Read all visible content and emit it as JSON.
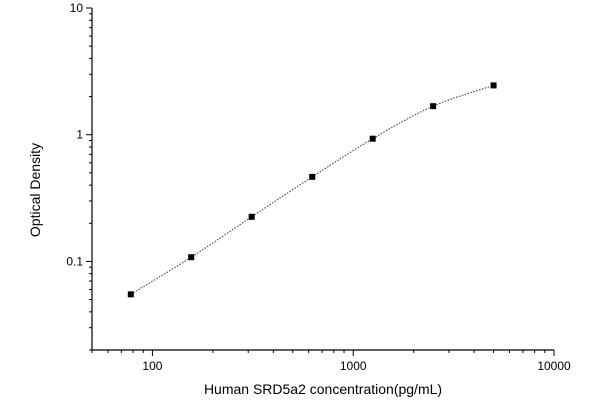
{
  "chart_data": {
    "type": "scatter",
    "xlabel": "Human SRD5a2 concentration(pg/mL)",
    "ylabel": "Optical Density",
    "xscale": "log",
    "yscale": "log",
    "xlim": [
      50,
      10000
    ],
    "ylim": [
      0.02,
      10
    ],
    "x_ticks": [
      {
        "value": 100,
        "label": "100"
      },
      {
        "value": 1000,
        "label": "1000"
      },
      {
        "value": 10000,
        "label": "10000"
      }
    ],
    "y_ticks": [
      {
        "value": 0.1,
        "label": "0.1"
      },
      {
        "value": 1,
        "label": "1"
      },
      {
        "value": 10,
        "label": "10"
      }
    ],
    "grid": false,
    "fit_curve": true,
    "series": [
      {
        "x": [
          78,
          156,
          312,
          625,
          1250,
          2500,
          5000
        ],
        "y": [
          0.055,
          0.108,
          0.225,
          0.465,
          0.93,
          1.68,
          2.45
        ]
      }
    ]
  }
}
